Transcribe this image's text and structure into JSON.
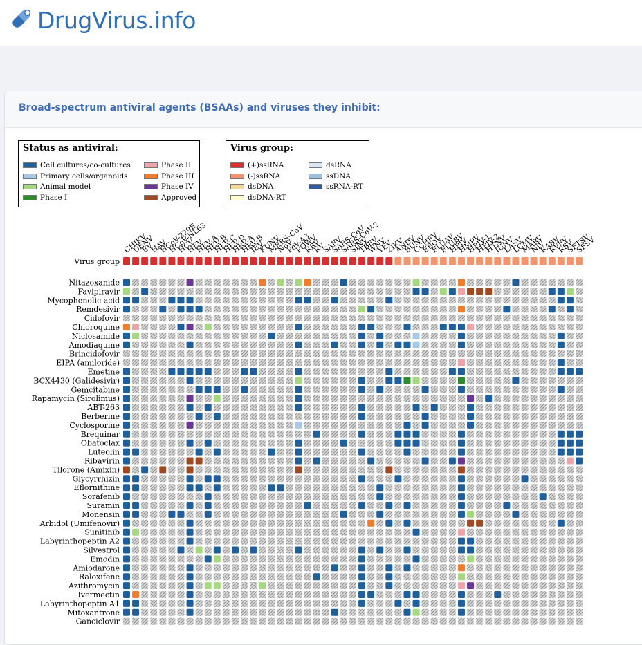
{
  "site": {
    "title": "DrugVirus.info",
    "logo_icon": "capsule-virus-icon"
  },
  "card": {
    "title": "Broad-spectrum antiviral agents (BSAAs) and viruses they inhibit:"
  },
  "status_legend": {
    "title": "Status as antiviral:",
    "items": [
      {
        "label": "Cell cultures/co-cultures",
        "color": "#1f5f9c"
      },
      {
        "label": "Primary cells/organoids",
        "color": "#a7c9e6"
      },
      {
        "label": "Animal model",
        "color": "#a5d87f"
      },
      {
        "label": "Phase I",
        "color": "#2e8b2e"
      },
      {
        "label": "Phase II",
        "color": "#f0a3a8"
      },
      {
        "label": "Phase III",
        "color": "#f07c2c"
      },
      {
        "label": "Phase IV",
        "color": "#6a3796"
      },
      {
        "label": "Approved",
        "color": "#a04a23"
      }
    ]
  },
  "group_legend": {
    "title": "Virus group:",
    "items": [
      {
        "label": "(+)ssRNA",
        "color": "#d72f2f"
      },
      {
        "label": "(-)ssRNA",
        "color": "#f3946d"
      },
      {
        "label": "dsDNA",
        "color": "#f2d99a"
      },
      {
        "label": "dsDNA-RT",
        "color": "#fdfbd0"
      },
      {
        "label": "dsRNA",
        "color": "#dbe7f1"
      },
      {
        "label": "ssDNA",
        "color": "#9fbfdb"
      },
      {
        "label": "ssRNA-RT",
        "color": "#35599c"
      }
    ]
  },
  "matrix": {
    "row_header": "Virus group",
    "viruses": [
      "CHIKV",
      "DENV",
      "EV",
      "HAV",
      "HCoV-229E",
      "HCoV-NL63",
      "HCV",
      "HEV",
      "HEV-A",
      "HEV-B",
      "HEV-C",
      "HEV-D",
      "HRV-A",
      "HRV-B",
      "JEV",
      "KUNV",
      "MERS-CoV",
      "NoV",
      "PeV-A3",
      "POWV",
      "RRV",
      "RV",
      "SAFV",
      "SARS-CoV",
      "SARS-CoV-2",
      "SINV",
      "TBEV",
      "WNV",
      "YFV",
      "ZIKV",
      "ANDV",
      "BUNV",
      "CCHFV",
      "EBOV",
      "FLUAV",
      "FLUBV",
      "HPIV",
      "HMPV",
      "HPIV-1",
      "HPIV-2",
      "HTNV",
      "JUNV",
      "LASV",
      "LCMV",
      "MARV",
      "NiV",
      "RABV",
      "RVFV",
      "RSV",
      "SFTSV",
      "SFSV"
    ],
    "groups": [
      "(+)ssRNA",
      "(+)ssRNA",
      "(+)ssRNA",
      "(+)ssRNA",
      "(+)ssRNA",
      "(+)ssRNA",
      "(+)ssRNA",
      "(+)ssRNA",
      "(+)ssRNA",
      "(+)ssRNA",
      "(+)ssRNA",
      "(+)ssRNA",
      "(+)ssRNA",
      "(+)ssRNA",
      "(+)ssRNA",
      "(+)ssRNA",
      "(+)ssRNA",
      "(+)ssRNA",
      "(+)ssRNA",
      "(+)ssRNA",
      "(+)ssRNA",
      "(+)ssRNA",
      "(+)ssRNA",
      "(+)ssRNA",
      "(+)ssRNA",
      "(+)ssRNA",
      "(+)ssRNA",
      "(+)ssRNA",
      "(+)ssRNA",
      "(+)ssRNA",
      "(-)ssRNA",
      "(-)ssRNA",
      "(-)ssRNA",
      "(-)ssRNA",
      "(-)ssRNA",
      "(-)ssRNA",
      "(-)ssRNA",
      "(-)ssRNA",
      "(-)ssRNA",
      "(-)ssRNA",
      "(-)ssRNA",
      "(-)ssRNA",
      "(-)ssRNA",
      "(-)ssRNA",
      "(-)ssRNA",
      "(-)ssRNA",
      "(-)ssRNA",
      "(-)ssRNA",
      "(-)ssRNA",
      "(-)ssRNA",
      "(-)ssRNA"
    ],
    "drugs": [
      {
        "name": "Nitazoxanide",
        "cells": {
          "0": "C",
          "7": "P4",
          "15": "P3",
          "17": "A",
          "19": "A",
          "20": "P3",
          "24": "C",
          "32": "A",
          "37": "P3",
          "43": "C",
          "53": "C",
          "56": "C",
          "58": "C"
        }
      },
      {
        "name": "Favipiravir",
        "cells": {
          "0": "A",
          "2": "C",
          "32": "C",
          "33": "C",
          "35": "A",
          "36": "C",
          "37": "P2",
          "38": "AP",
          "39": "AP",
          "40": "AP",
          "47": "C",
          "48": "C",
          "49": "A",
          "51": "C",
          "52": "C",
          "54": "C",
          "56": "C",
          "57": "C"
        }
      },
      {
        "name": "Mycophenolic acid",
        "cells": {
          "0": "C",
          "1": "C",
          "5": "C",
          "6": "C",
          "7": "C",
          "19": "C",
          "20": "C",
          "23": "C",
          "29": "C",
          "48": "C",
          "49": "C",
          "51": "C",
          "54": "C",
          "55": "C"
        }
      },
      {
        "name": "Remdesivir",
        "cells": {
          "0": "C",
          "4": "C",
          "6": "C",
          "7": "C",
          "8": "C",
          "26": "A",
          "27": "C",
          "37": "P3",
          "42": "C",
          "47": "C",
          "49": "C",
          "52": "C"
        }
      },
      {
        "name": "Cidofovir",
        "cells": {}
      },
      {
        "name": "Chloroquine",
        "cells": {
          "0": "P3",
          "1": "P2",
          "6": "C",
          "7": "P4",
          "9": "A",
          "19": "C",
          "26": "C",
          "27": "C",
          "31": "C",
          "35": "C",
          "36": "C",
          "37": "C",
          "38": "P2"
        }
      },
      {
        "name": "Niclosamide",
        "cells": {
          "0": "C",
          "1": "A",
          "16": "C",
          "26": "C",
          "28": "C",
          "32": "PC",
          "37": "C",
          "48": "C"
        }
      },
      {
        "name": "Amodiaquine",
        "cells": {
          "0": "C",
          "7": "C",
          "19": "C",
          "23": "C",
          "26": "C",
          "28": "C",
          "30": "C",
          "31": "C",
          "32": "PC",
          "37": "C",
          "48": "C"
        }
      },
      {
        "name": "Brincidofovir",
        "cells": {}
      },
      {
        "name": "EIPA (amiloride)",
        "cells": {
          "37": "P2",
          "48": "C"
        }
      },
      {
        "name": "Emetine",
        "cells": {
          "0": "C",
          "5": "C",
          "6": "C",
          "7": "C",
          "8": "C",
          "9": "C",
          "13": "C",
          "14": "C",
          "19": "C",
          "29": "C",
          "36": "C",
          "37": "C",
          "48": "C",
          "49": "C",
          "50": "C",
          "53": "C",
          "56": "C"
        }
      },
      {
        "name": "BCX4430 (Galidesivir)",
        "cells": {
          "0": "C",
          "7": "C",
          "19": "A",
          "26": "C",
          "29": "C",
          "30": "C",
          "31": "P1",
          "32": "A",
          "37": "P1",
          "43": "C",
          "51": "P1",
          "53": "C",
          "56": "C"
        }
      },
      {
        "name": "Gemcitabine",
        "cells": {
          "0": "C",
          "8": "C",
          "9": "C",
          "10": "C",
          "13": "C",
          "19": "C",
          "26": "C",
          "28": "C",
          "33": "C",
          "37": "C",
          "48": "C"
        }
      },
      {
        "name": "Rapamycin (Sirolimus)",
        "cells": {
          "0": "C",
          "7": "P4",
          "10": "A",
          "19": "C",
          "38": "P4",
          "40": "C",
          "57": "A"
        }
      },
      {
        "name": "ABT-263",
        "cells": {
          "0": "C",
          "7": "C",
          "9": "C",
          "19": "C",
          "26": "C",
          "32": "C",
          "34": "C",
          "38": "C",
          "52": "C"
        }
      },
      {
        "name": "Berberine",
        "cells": {
          "0": "C",
          "8": "C",
          "10": "C",
          "26": "C",
          "33": "C",
          "38": "C",
          "55": "C"
        }
      },
      {
        "name": "Cyclosporine",
        "cells": {
          "0": "C",
          "7": "P4",
          "19": "PC",
          "31": "C",
          "33": "C",
          "38": "C",
          "52": "C"
        }
      },
      {
        "name": "Brequinar",
        "cells": {
          "0": "C",
          "21": "C",
          "26": "C",
          "30": "C",
          "31": "C",
          "32": "C",
          "37": "C",
          "48": "C",
          "49": "C",
          "50": "C",
          "56": "C"
        }
      },
      {
        "name": "Obatoclax",
        "cells": {
          "0": "C",
          "7": "C",
          "9": "C",
          "19": "C",
          "24": "C",
          "30": "C",
          "31": "C",
          "32": "C",
          "37": "C",
          "48": "C",
          "49": "C",
          "50": "C",
          "57": "C"
        }
      },
      {
        "name": "Luteolin",
        "cells": {
          "0": "C",
          "1": "C",
          "8": "C",
          "10": "C",
          "16": "C",
          "19": "C",
          "26": "C",
          "31": "C",
          "37": "C",
          "48": "C",
          "49": "C",
          "50": "C"
        }
      },
      {
        "name": "Ribavirin",
        "cells": {
          "0": "C",
          "7": "AP",
          "8": "AP",
          "19": "C",
          "21": "C",
          "27": "C",
          "33": "C",
          "36": "C",
          "37": "P4",
          "49": "P2",
          "50": "C",
          "51": "C",
          "53": "C",
          "55": "AP",
          "57": "C"
        }
      },
      {
        "name": "Tilorone (Amixin)",
        "cells": {
          "0": "AP",
          "2": "C",
          "4": "AP",
          "7": "AP",
          "19": "AP",
          "29": "AP",
          "37": "AP",
          "51": "AP",
          "53": "C"
        }
      },
      {
        "name": "Glycyrrhizin",
        "cells": {
          "0": "C",
          "1": "C",
          "7": "C",
          "9": "C",
          "10": "C",
          "26": "C",
          "30": "C",
          "37": "C",
          "44": "C"
        }
      },
      {
        "name": "Eflornithine",
        "cells": {
          "0": "C",
          "1": "C",
          "7": "C",
          "8": "C",
          "10": "C",
          "16": "C",
          "17": "C",
          "28": "C",
          "37": "C",
          "53": "C"
        }
      },
      {
        "name": "Sorafenib",
        "cells": {
          "0": "C",
          "9": "C",
          "28": "C",
          "37": "C",
          "46": "C"
        }
      },
      {
        "name": "Suramin",
        "cells": {
          "0": "C",
          "1": "C",
          "7": "C",
          "9": "C",
          "20": "C",
          "26": "C",
          "29": "C",
          "31": "C",
          "37": "C",
          "42": "C",
          "57": "C",
          "58": "C"
        }
      },
      {
        "name": "Monensin",
        "cells": {
          "0": "C",
          "1": "C",
          "5": "C",
          "6": "C",
          "9": "C",
          "24": "C",
          "28": "C",
          "37": "C",
          "38": "A",
          "43": "C",
          "57": "C",
          "58": "C"
        }
      },
      {
        "name": "Arbidol (Umifenovir)",
        "cells": {
          "0": "C",
          "7": "C",
          "27": "P3",
          "29": "C",
          "31": "C",
          "38": "AP",
          "39": "AP",
          "48": "C",
          "53": "C"
        }
      },
      {
        "name": "Sunitinib",
        "cells": {
          "0": "C",
          "1": "A",
          "7": "C",
          "32": "C",
          "37": "P2",
          "56": "C"
        }
      },
      {
        "name": "Labyrinthopeptin A2",
        "cells": {
          "0": "C",
          "7": "C",
          "37": "C",
          "38": "C"
        }
      },
      {
        "name": "Silvestrol",
        "cells": {
          "0": "C",
          "6": "C",
          "8": "A",
          "10": "C",
          "12": "C",
          "14": "C",
          "19": "C",
          "26": "C",
          "28": "C",
          "31": "C",
          "37": "C",
          "38": "C"
        }
      },
      {
        "name": "Emodin",
        "cells": {
          "0": "C",
          "9": "C",
          "10": "A",
          "26": "C",
          "32": "C",
          "38": "A"
        }
      },
      {
        "name": "Amiodarone",
        "cells": {
          "0": "C",
          "7": "C",
          "23": "C",
          "26": "C",
          "29": "C",
          "31": "C",
          "37": "P3"
        }
      },
      {
        "name": "Raloxifene",
        "cells": {
          "0": "C",
          "7": "C",
          "21": "C",
          "26": "C",
          "29": "C",
          "37": "A",
          "55": "C"
        }
      },
      {
        "name": "Azithromycin",
        "cells": {
          "0": "C",
          "7": "C",
          "9": "A",
          "10": "A",
          "15": "A",
          "26": "C",
          "29": "C",
          "37": "P2",
          "38": "P4",
          "56": "P3"
        }
      },
      {
        "name": "Ivermectin",
        "cells": {
          "0": "C",
          "1": "P3",
          "7": "C",
          "26": "C",
          "27": "C",
          "31": "C",
          "32": "C",
          "37": "C",
          "41": "C"
        }
      },
      {
        "name": "Labyrinthopeptin A1",
        "cells": {
          "0": "C",
          "1": "C",
          "7": "C",
          "26": "C",
          "30": "C",
          "32": "C",
          "37": "C"
        }
      },
      {
        "name": "Mitoxantrone",
        "cells": {
          "0": "C",
          "1": "C",
          "7": "C",
          "23": "C",
          "31": "C",
          "32": "A",
          "37": "C"
        }
      },
      {
        "name": "Ganciclovir",
        "cells": {}
      }
    ]
  }
}
